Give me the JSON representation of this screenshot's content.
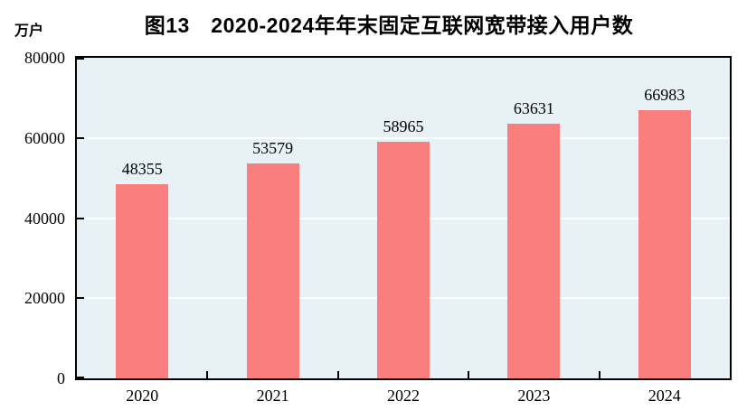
{
  "chart_data": {
    "type": "bar",
    "title": "图13　2020-2024年年末固定互联网宽带接入用户数",
    "unit_label": "万户",
    "categories": [
      "2020",
      "2021",
      "2022",
      "2023",
      "2024"
    ],
    "values": [
      48355,
      53579,
      58965,
      63631,
      66983
    ],
    "ylim": [
      0,
      80000
    ],
    "yticks": [
      0,
      20000,
      40000,
      60000,
      80000
    ],
    "xlabel": "",
    "ylabel": "万户",
    "grid": "horizontal",
    "legend_position": "none",
    "colors": {
      "bar": "#fa7e7e",
      "plot_background": "#e8f1f5",
      "gridline": "#ffffff",
      "axis": "#000000",
      "text": "#000000"
    }
  }
}
